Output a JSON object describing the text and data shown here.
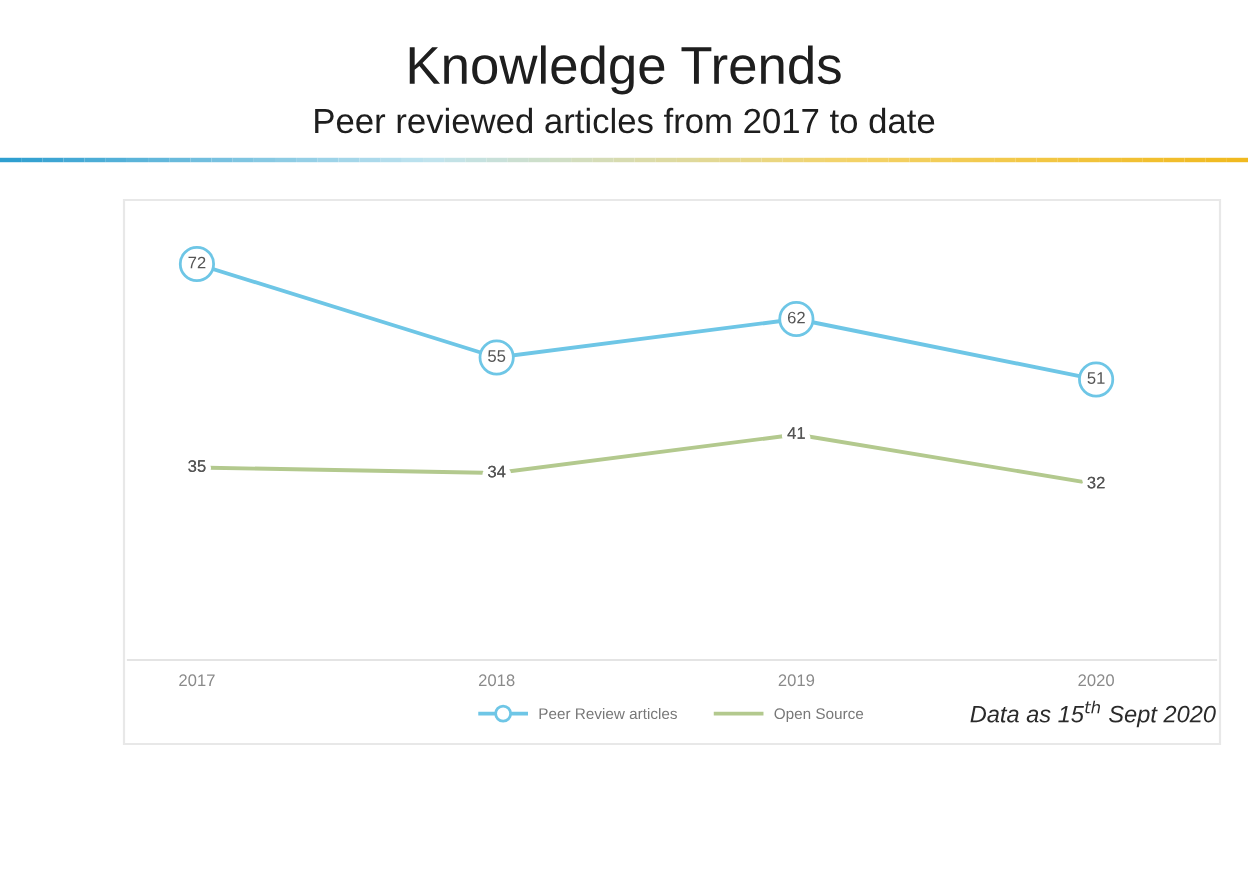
{
  "chart_data": {
    "type": "line",
    "title": "Knowledge Trends",
    "subtitle": "Peer reviewed articles from 2017 to date",
    "categories": [
      "2017",
      "2018",
      "2019",
      "2020"
    ],
    "series": [
      {
        "name": "Peer Review articles",
        "color": "#6ec6e6",
        "values": [
          72,
          55,
          62,
          51
        ],
        "marker": "circle"
      },
      {
        "name": "Open Source",
        "color": "#b3c98e",
        "values": [
          35,
          34,
          41,
          32
        ],
        "marker": "none"
      }
    ],
    "tick_labels": "x",
    "data_labels": true,
    "legend": "bottom",
    "line_style": "solid",
    "annotations": [
      "Data as 15$^{th}$ Sept 2020"
    ]
  }
}
